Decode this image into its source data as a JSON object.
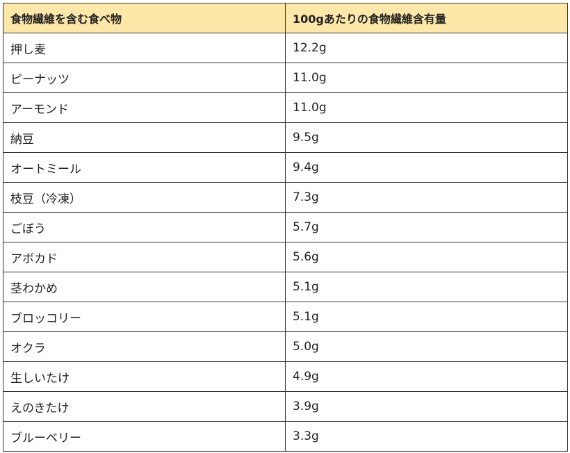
{
  "header": {
    "food": "食物繊維を含む食べ物",
    "amount": "100gあたりの食物繊維含有量"
  },
  "colors": {
    "header_bg": "#fde8a9",
    "border": "#333333"
  },
  "rows": [
    {
      "food": "押し麦",
      "amount": "12.2g"
    },
    {
      "food": "ピーナッツ",
      "amount": "11.0g"
    },
    {
      "food": "アーモンド",
      "amount": "11.0g"
    },
    {
      "food": "納豆",
      "amount": "9.5g"
    },
    {
      "food": "オートミール",
      "amount": "9.4g"
    },
    {
      "food": "枝豆（冷凍）",
      "amount": "7.3g"
    },
    {
      "food": "ごぼう",
      "amount": "5.7g"
    },
    {
      "food": "アボカド",
      "amount": "5.6g"
    },
    {
      "food": "茎わかめ",
      "amount": "5.1g"
    },
    {
      "food": "ブロッコリー",
      "amount": "5.1g"
    },
    {
      "food": "オクラ",
      "amount": "5.0g"
    },
    {
      "food": "生しいたけ",
      "amount": "4.9g"
    },
    {
      "food": "えのきたけ",
      "amount": "3.9g"
    },
    {
      "food": "ブルーベリー",
      "amount": "3.3g"
    }
  ]
}
